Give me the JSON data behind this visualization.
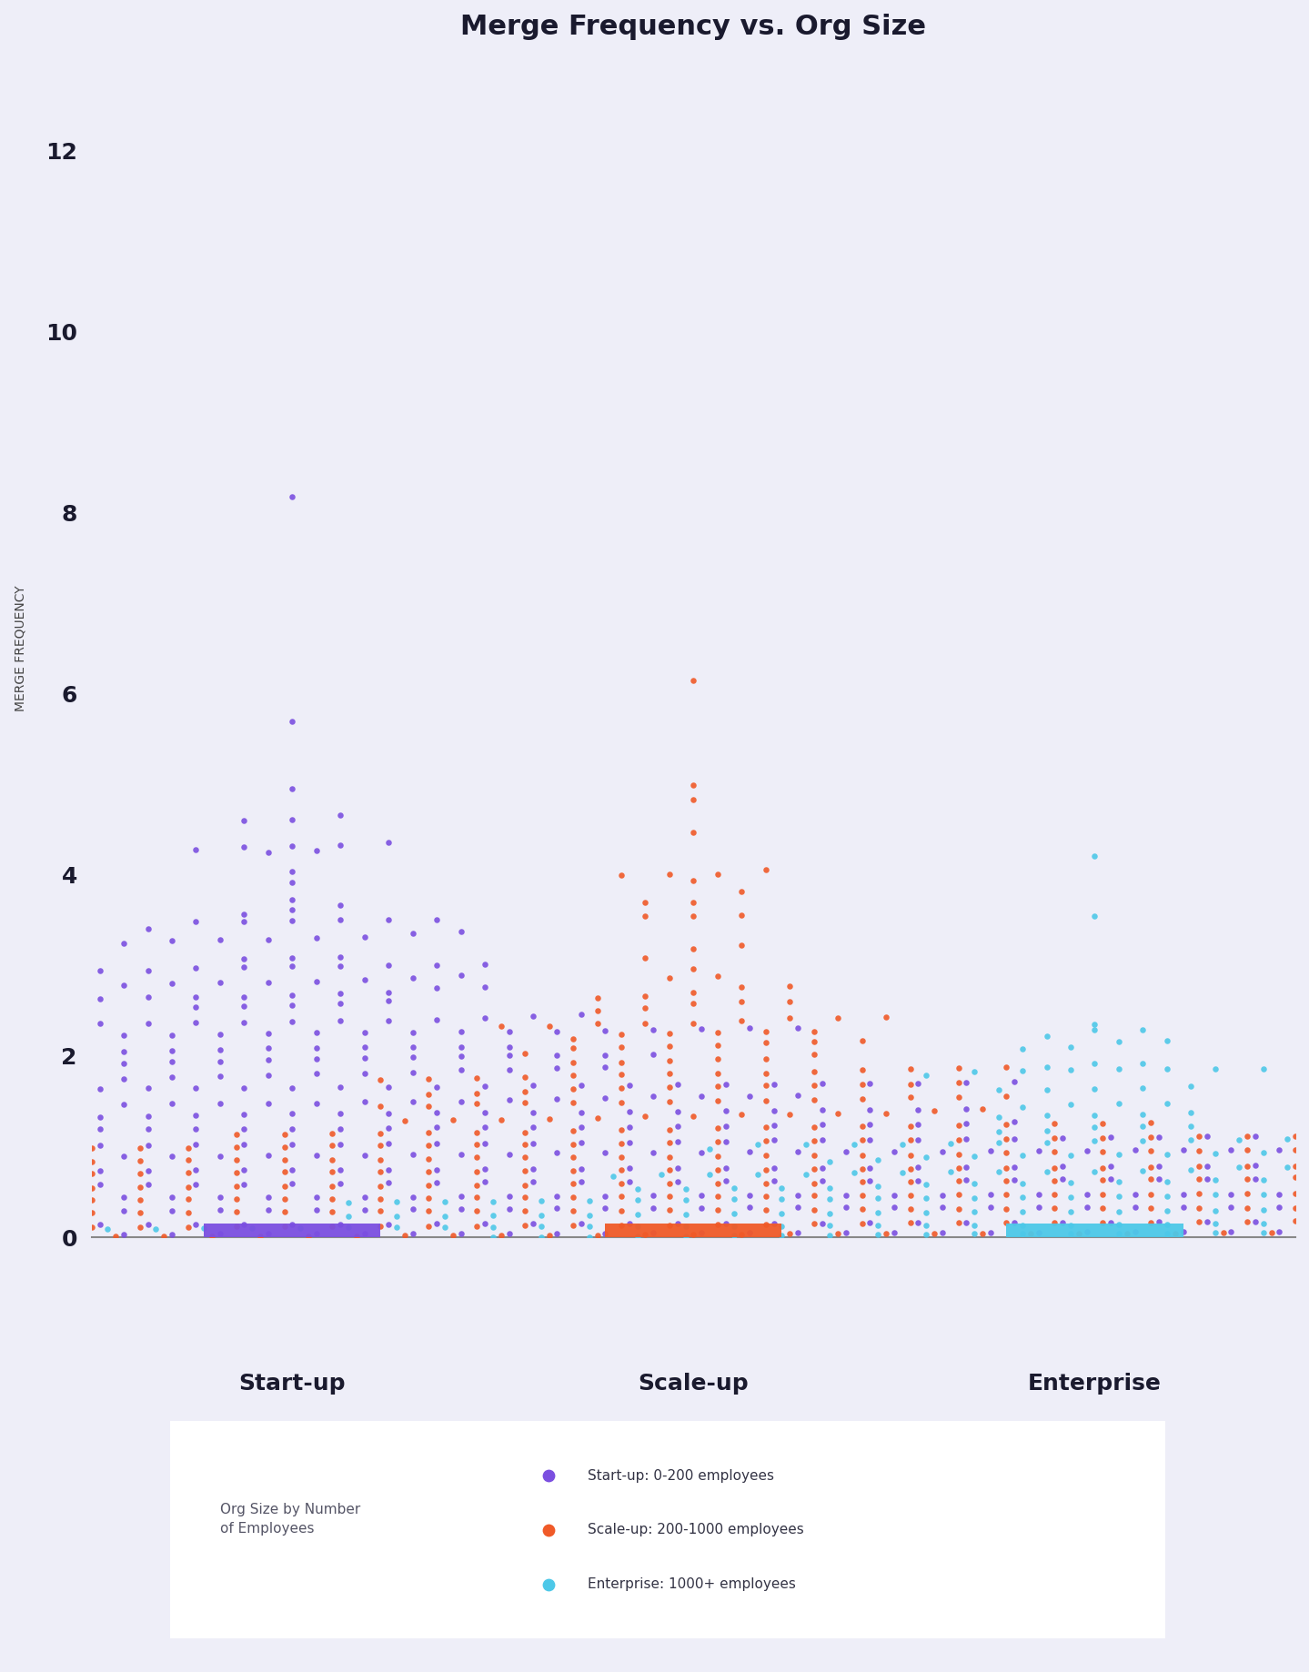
{
  "title": "Merge Frequency vs. Org Size",
  "ylabel": "MERGE FREQUENCY",
  "categories": [
    "Start-up",
    "Scale-up",
    "Enterprise"
  ],
  "colors": [
    "#7B4FE0",
    "#F05A28",
    "#4DC8E8"
  ],
  "background_color": "#EEEEF8",
  "plot_bg_color": "#EEEEF8",
  "ylim": [
    0,
    13
  ],
  "yticks": [
    0,
    2,
    4,
    6,
    8,
    10,
    12
  ],
  "legend_title": "Org Size by Number\nof Employees",
  "legend_labels": [
    "Start-up: 0-200 employees",
    "Scale-up: 200-1000 employees",
    "Enterprise: 1000+ employees"
  ],
  "title_fontsize": 22,
  "axis_label_fontsize": 10,
  "tick_fontsize": 18,
  "cat_fontsize": 18,
  "seed_startup": 42,
  "seed_scaleup": 123,
  "seed_enterprise": 999,
  "n_startup": 800,
  "n_scaleup": 500,
  "n_enterprise": 250
}
